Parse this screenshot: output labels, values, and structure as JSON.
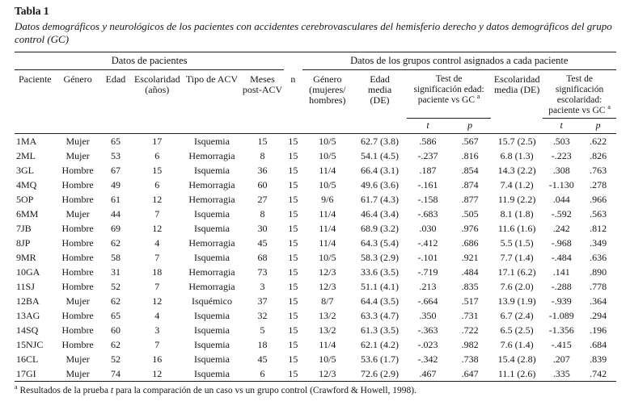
{
  "page": {
    "title": "Tabla 1",
    "caption": "Datos demográficos y neurológicos de los pacientes con accidentes cerebrovasculares del hemisferio derecho y datos demográficos del grupo control (GC)"
  },
  "table": {
    "spanners": {
      "patients": "Datos de pacientes",
      "controls": "Datos de los grupos control asignados a cada paciente"
    },
    "headers": {
      "paciente": "Paciente",
      "genero": "Género",
      "edad": "Edad",
      "escolaridad": "Escolaridad\n(años)",
      "tipo_acv": "Tipo de ACV",
      "meses": "Meses\npost-ACV",
      "n": "n",
      "genero_gc": "Género\n(mujeres/\nhombres)",
      "edad_media": "Edad\nmedia\n(DE)",
      "test_edad": "Test de\nsignificación edad:\npaciente vs GC ",
      "escolaridad_media": "Escolaridad\nmedia (DE)",
      "test_escolaridad": "Test de\nsignificación\nescolaridad:\npaciente vs GC ",
      "footnote_marker": "a",
      "t": "t",
      "p": "p"
    },
    "rows": [
      [
        "1MA",
        "Mujer",
        "65",
        "17",
        "Isquemia",
        "15",
        "15",
        "10/5",
        "62.7 (3.8)",
        ".586",
        ".567",
        "15.7 (2.5)",
        ".503",
        ".622"
      ],
      [
        "2ML",
        "Mujer",
        "53",
        "6",
        "Hemorragia",
        "8",
        "15",
        "10/5",
        "54.1 (4.5)",
        "-.237",
        ".816",
        "6.8 (1.3)",
        "-.223",
        ".826"
      ],
      [
        "3GL",
        "Hombre",
        "67",
        "15",
        "Isquemia",
        "36",
        "15",
        "11/4",
        "66.4 (3.1)",
        ".187",
        ".854",
        "14.3 (2.2)",
        ".308",
        ".763"
      ],
      [
        "4MQ",
        "Hombre",
        "49",
        "6",
        "Hemorragia",
        "60",
        "15",
        "10/5",
        "49.6 (3.6)",
        "-.161",
        ".874",
        "7.4 (1.2)",
        "-1.130",
        ".278"
      ],
      [
        "5OP",
        "Hombre",
        "61",
        "12",
        "Hemorragia",
        "27",
        "15",
        "9/6",
        "61.7 (4.3)",
        "-.158",
        ".877",
        "11.9 (2.2)",
        ".044",
        ".966"
      ],
      [
        "6MM",
        "Mujer",
        "44",
        "7",
        "Isquemia",
        "8",
        "15",
        "11/4",
        "46.4 (3.4)",
        "-.683",
        ".505",
        "8.1 (1.8)",
        "-.592",
        ".563"
      ],
      [
        "7JB",
        "Hombre",
        "69",
        "12",
        "Isquemia",
        "30",
        "15",
        "11/4",
        "68.9 (3.2)",
        ".030",
        ".976",
        "11.6 (1.6)",
        ".242",
        ".812"
      ],
      [
        "8JP",
        "Hombre",
        "62",
        "4",
        "Hemorragia",
        "45",
        "15",
        "11/4",
        "64.3 (5.4)",
        "-.412",
        ".686",
        "5.5 (1.5)",
        "-.968",
        ".349"
      ],
      [
        "9MR",
        "Hombre",
        "58",
        "7",
        "Isquemia",
        "68",
        "15",
        "10/5",
        "58.3 (2.9)",
        "-.101",
        ".921",
        "7.7 (1.4)",
        "-.484",
        ".636"
      ],
      [
        "10GA",
        "Hombre",
        "31",
        "18",
        "Hemorragia",
        "73",
        "15",
        "12/3",
        "33.6 (3.5)",
        "-.719",
        ".484",
        "17.1 (6.2)",
        ".141",
        ".890"
      ],
      [
        "11SJ",
        "Hombre",
        "52",
        "7",
        "Hemorragia",
        "3",
        "15",
        "12/3",
        "51.1 (4.1)",
        ".213",
        ".835",
        "7.6 (2.0)",
        "-.288",
        ".778"
      ],
      [
        "12BA",
        "Mujer",
        "62",
        "12",
        "Isquémico",
        "37",
        "15",
        "8/7",
        "64.4 (3.5)",
        "-.664",
        ".517",
        "13.9 (1.9)",
        "-.939",
        ".364"
      ],
      [
        "13AG",
        "Hombre",
        "65",
        "4",
        "Isquemia",
        "32",
        "15",
        "13/2",
        "63.3 (4.7)",
        ".350",
        ".731",
        "6.7 (2.4)",
        "-1.089",
        ".294"
      ],
      [
        "14SQ",
        "Hombre",
        "60",
        "3",
        "Isquemia",
        "5",
        "15",
        "13/2",
        "61.3 (3.5)",
        "-.363",
        ".722",
        "6.5 (2.5)",
        "-1.356",
        ".196"
      ],
      [
        "15NJC",
        "Hombre",
        "62",
        "7",
        "Isquemia",
        "18",
        "15",
        "11/4",
        "62.1 (4.2)",
        "-.023",
        ".982",
        "7.6 (1.4)",
        "-.415",
        ".684"
      ],
      [
        "16CL",
        "Mujer",
        "52",
        "16",
        "Isquemia",
        "45",
        "15",
        "10/5",
        "53.6 (1.7)",
        "-.342",
        ".738",
        "15.4 (2.8)",
        ".207",
        ".839"
      ],
      [
        "17GI",
        "Mujer",
        "74",
        "12",
        "Isquemia",
        "6",
        "15",
        "12/3",
        "72.6 (2.9)",
        ".467",
        ".647",
        "11.1 (2.6)",
        ".335",
        ".742"
      ]
    ]
  },
  "footnote": {
    "marker": "a",
    "text_before_t": " Resultados de la prueba ",
    "t_italic": "t",
    "text_after_t": " para la comparación de un caso vs un grupo control (Crawford & Howell, 1998)."
  }
}
